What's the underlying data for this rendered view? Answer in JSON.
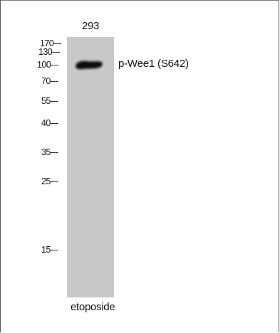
{
  "lane": {
    "label": "293",
    "treatment": "etoposide"
  },
  "band": {
    "label": "p-Wee1 (S642)"
  },
  "markers": [
    {
      "label": "170---"
    },
    {
      "label": "130---"
    },
    {
      "label": "100---"
    },
    {
      "label": "70---"
    },
    {
      "label": "55---"
    },
    {
      "label": "40---"
    },
    {
      "label": "35---"
    },
    {
      "label": "25---"
    },
    {
      "label": "15---"
    }
  ],
  "colors": {
    "lane_background": "#c8c8c8",
    "band": "#111111",
    "frame": "#555555"
  }
}
